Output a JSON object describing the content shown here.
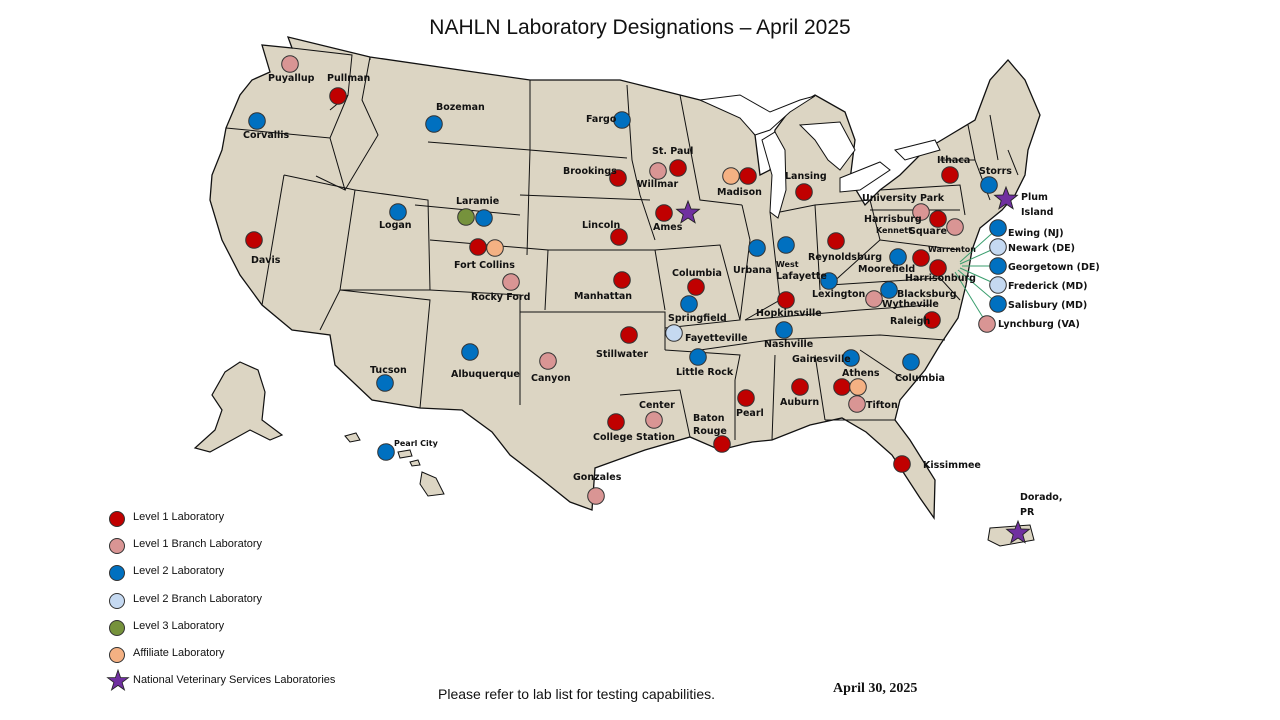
{
  "title": "NAHLN Laboratory Designations – April 2025",
  "colors": {
    "land": "#dcd5c3",
    "border": "#111111",
    "level1": "#c00000",
    "level1_branch": "#d99594",
    "level2": "#0070c0",
    "level2_branch": "#c5d9f1",
    "level3": "#76923c",
    "affiliate": "#f4b183",
    "nvsl": "#7030a0",
    "leader_line": "#3a9e6e"
  },
  "legend": [
    {
      "key": "level1",
      "label": "Level 1 Laboratory",
      "icon": "circle-icon"
    },
    {
      "key": "level1_branch",
      "label": "Level 1 Branch Laboratory",
      "icon": "circle-icon"
    },
    {
      "key": "level2",
      "label": "Level 2 Laboratory",
      "icon": "circle-icon"
    },
    {
      "key": "level2_branch",
      "label": "Level 2 Branch Laboratory",
      "icon": "circle-icon"
    },
    {
      "key": "level3",
      "label": "Level 3 Laboratory",
      "icon": "circle-icon"
    },
    {
      "key": "affiliate",
      "label": "Affiliate Laboratory",
      "icon": "circle-icon"
    },
    {
      "key": "nvsl",
      "label": "National Veterinary Services Laboratories",
      "icon": "star-icon"
    }
  ],
  "labs": [
    {
      "name": "Puyallup",
      "type": "level1_branch"
    },
    {
      "name": "Pullman",
      "type": "level1"
    },
    {
      "name": "Corvallis",
      "type": "level2"
    },
    {
      "name": "Bozeman",
      "type": "level2"
    },
    {
      "name": "Fargo",
      "type": "level2"
    },
    {
      "name": "St. Paul",
      "type": "level1"
    },
    {
      "name": "Willmar",
      "type": "level1_branch"
    },
    {
      "name": "Brookings",
      "type": "level1"
    },
    {
      "name": "Madison",
      "type": "level1"
    },
    {
      "name": "Madison (Affiliate)",
      "type": "affiliate"
    },
    {
      "name": "Lansing",
      "type": "level1"
    },
    {
      "name": "Ithaca",
      "type": "level1"
    },
    {
      "name": "Storrs",
      "type": "level2"
    },
    {
      "name": "Plum Island",
      "type": "nvsl"
    },
    {
      "name": "University Park",
      "type": "level1_branch"
    },
    {
      "name": "Harrisburg",
      "type": "level1"
    },
    {
      "name": "Kennett Square",
      "type": "level1_branch"
    },
    {
      "name": "Ewing (NJ)",
      "type": "level2"
    },
    {
      "name": "Newark (DE)",
      "type": "level2_branch"
    },
    {
      "name": "Georgetown (DE)",
      "type": "level2"
    },
    {
      "name": "Frederick (MD)",
      "type": "level2_branch"
    },
    {
      "name": "Salisbury (MD)",
      "type": "level2"
    },
    {
      "name": "Lynchburg (VA)",
      "type": "level1_branch"
    },
    {
      "name": "Laramie",
      "type": "level3"
    },
    {
      "name": "Laramie (Level 2)",
      "type": "level2"
    },
    {
      "name": "Logan",
      "type": "level2"
    },
    {
      "name": "Davis",
      "type": "level1"
    },
    {
      "name": "Fort Collins",
      "type": "level1"
    },
    {
      "name": "Fort Collins (Affiliate)",
      "type": "affiliate"
    },
    {
      "name": "Rocky Ford",
      "type": "level1_branch"
    },
    {
      "name": "Lincoln",
      "type": "level1"
    },
    {
      "name": "Ames",
      "type": "level1"
    },
    {
      "name": "Ames (NVSL)",
      "type": "nvsl"
    },
    {
      "name": "Urbana",
      "type": "level2"
    },
    {
      "name": "West Lafayette",
      "type": "level2"
    },
    {
      "name": "Reynoldsburg",
      "type": "level1"
    },
    {
      "name": "Moorefield",
      "type": "level2"
    },
    {
      "name": "Warrenton",
      "type": "level1"
    },
    {
      "name": "Harrisonburg",
      "type": "level1"
    },
    {
      "name": "Columbia (MO)",
      "type": "level1"
    },
    {
      "name": "Springfield",
      "type": "level2"
    },
    {
      "name": "Manhattan",
      "type": "level1"
    },
    {
      "name": "Fayetteville",
      "type": "level2_branch"
    },
    {
      "name": "Lexington",
      "type": "level2"
    },
    {
      "name": "Hopkinsville",
      "type": "level1"
    },
    {
      "name": "Wytheville",
      "type": "level1_branch"
    },
    {
      "name": "Blacksburg",
      "type": "level2"
    },
    {
      "name": "Raleigh",
      "type": "level1"
    },
    {
      "name": "Stillwater",
      "type": "level1"
    },
    {
      "name": "Nashville",
      "type": "level2"
    },
    {
      "name": "Little Rock",
      "type": "level2"
    },
    {
      "name": "Gainesville",
      "type": "level2"
    },
    {
      "name": "Columbia (SC)",
      "type": "level2"
    },
    {
      "name": "Tucson",
      "type": "level2"
    },
    {
      "name": "Albuquerque",
      "type": "level2"
    },
    {
      "name": "Canyon",
      "type": "level1_branch"
    },
    {
      "name": "Athens",
      "type": "level1"
    },
    {
      "name": "Athens (Affiliate)",
      "type": "affiliate"
    },
    {
      "name": "Tifton",
      "type": "level1_branch"
    },
    {
      "name": "Pearl",
      "type": "level1"
    },
    {
      "name": "Auburn",
      "type": "level1"
    },
    {
      "name": "Center",
      "type": "level1_branch"
    },
    {
      "name": "College Station",
      "type": "level1"
    },
    {
      "name": "Baton Rouge",
      "type": "level1"
    },
    {
      "name": "Pearl City",
      "type": "level2"
    },
    {
      "name": "Kissimmee",
      "type": "level1"
    },
    {
      "name": "Gonzales",
      "type": "level1_branch"
    },
    {
      "name": "Dorado, PR",
      "type": "nvsl"
    }
  ],
  "labels": {
    "puyallup": "Puyallup",
    "pullman": "Pullman",
    "corvallis": "Corvallis",
    "bozeman": "Bozeman",
    "fargo": "Fargo",
    "st_paul": "St. Paul",
    "willmar": "Willmar",
    "brookings": "Brookings",
    "madison": "Madison",
    "lansing": "Lansing",
    "ithaca": "Ithaca",
    "storrs": "Storrs",
    "plum": "Plum",
    "island": "Island",
    "university_park": "University Park",
    "harrisburg": "Harrisburg",
    "kennett": "Kennett",
    "square": "Square",
    "ewing": "Ewing (NJ)",
    "newark": "Newark (DE)",
    "georgetown": "Georgetown (DE)",
    "frederick": "Frederick (MD)",
    "salisbury": "Salisbury (MD)",
    "lynchburg": "Lynchburg (VA)",
    "laramie": "Laramie",
    "logan": "Logan",
    "davis": "Davis",
    "fort_collins": "Fort Collins",
    "rocky_ford": "Rocky Ford",
    "lincoln": "Lincoln",
    "ames": "Ames",
    "urbana": "Urbana",
    "west": "West",
    "lafayette": "Lafayette",
    "reynoldsburg": "Reynoldsburg",
    "moorefield": "Moorefield",
    "warrenton": "Warrenton",
    "harrisonburg": "Harrisonburg",
    "columbia_mo": "Columbia",
    "springfield": "Springfield",
    "manhattan": "Manhattan",
    "fayetteville": "Fayetteville",
    "lexington": "Lexington",
    "hopkinsville": "Hopkinsville",
    "wytheville": "Wytheville",
    "blacksburg": "Blacksburg",
    "raleigh": "Raleigh",
    "stillwater": "Stillwater",
    "nashville": "Nashville",
    "little_rock": "Little Rock",
    "gainesville": "Gainesville",
    "columbia_sc": "Columbia",
    "tucson": "Tucson",
    "albuquerque": "Albuquerque",
    "canyon": "Canyon",
    "athens": "Athens",
    "tifton": "Tifton",
    "pearl": "Pearl",
    "auburn": "Auburn",
    "center": "Center",
    "college_station": "College Station",
    "baton": "Baton",
    "rouge": "Rouge",
    "pearl_city": "Pearl City",
    "kissimmee": "Kissimmee",
    "gonzales": "Gonzales",
    "dorado": "Dorado,",
    "pr": "PR"
  },
  "footnote": "Please refer to lab list for testing capabilities.",
  "date": "April 30, 2025"
}
